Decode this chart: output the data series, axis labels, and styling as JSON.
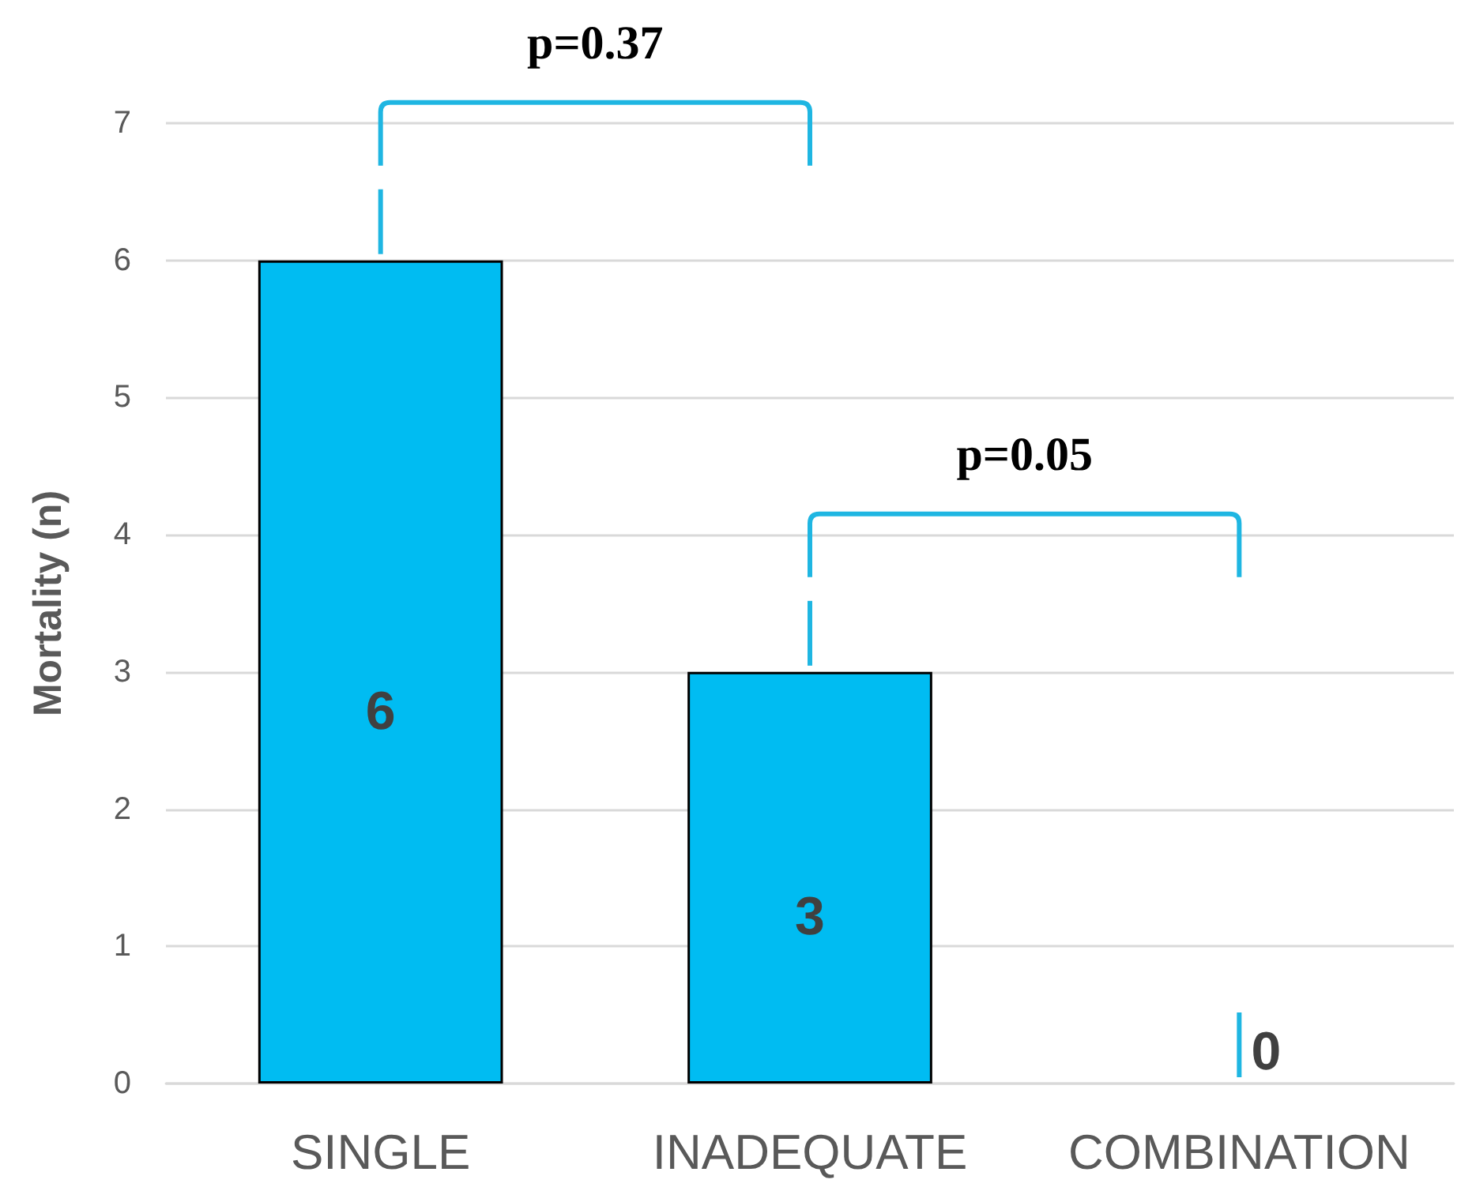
{
  "chart_data": {
    "type": "bar",
    "ylabel": "Mortality (n)",
    "categories": [
      "SINGLE",
      "INADEQUATE",
      "COMBINATION"
    ],
    "values": [
      6,
      3,
      0
    ],
    "color": "#00bcf2",
    "ylim": [
      0,
      7
    ],
    "yticks": [
      0,
      1,
      2,
      3,
      4,
      5,
      6,
      7
    ],
    "grid": "y",
    "data_labels": true,
    "annotations": [
      "p=0.37",
      "p=0.05"
    ]
  }
}
